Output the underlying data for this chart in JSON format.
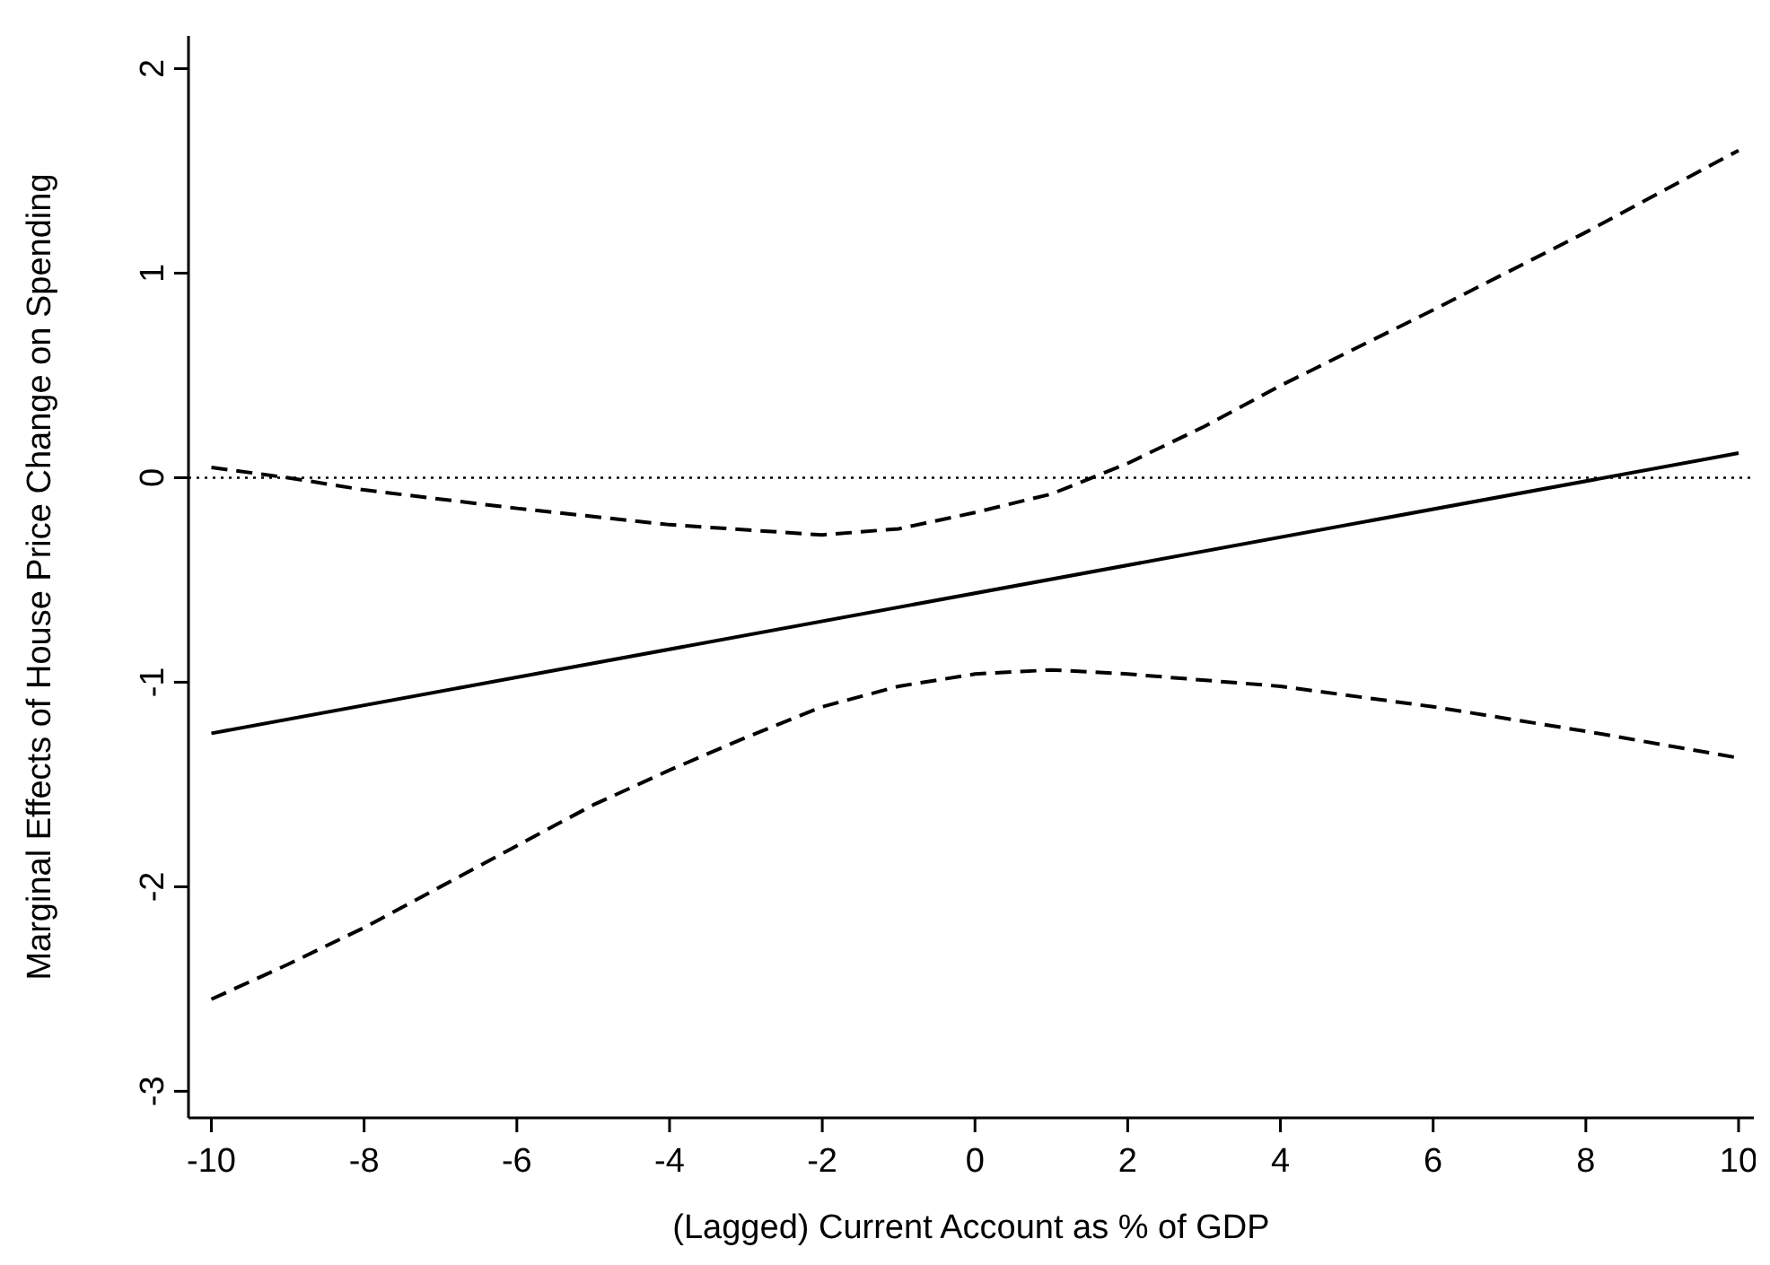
{
  "chart_data": {
    "type": "line",
    "xlabel": "(Lagged) Current Account as % of GDP",
    "ylabel": "Marginal Effects of House Price Change on Spending",
    "xlim": [
      -10.3,
      10.2
    ],
    "ylim": [
      -3.13,
      2.16
    ],
    "xticks": [
      -10,
      -8,
      -6,
      -4,
      -2,
      0,
      2,
      4,
      6,
      8,
      10
    ],
    "yticks": [
      -3,
      -2,
      -1,
      0,
      1,
      2
    ],
    "series": [
      {
        "color": "#000000",
        "line_style": "solid",
        "x": [
          -10,
          10
        ],
        "values": [
          -1.25,
          0.12
        ]
      },
      {
        "color": "#000000",
        "line_style": "dashed",
        "x": [
          -10,
          -9,
          -8,
          -6,
          -4,
          -2,
          -1,
          0,
          1,
          2,
          3,
          4,
          6,
          8,
          10
        ],
        "values": [
          0.05,
          0.0,
          -0.06,
          -0.15,
          -0.23,
          -0.28,
          -0.25,
          -0.17,
          -0.08,
          0.07,
          0.25,
          0.45,
          0.82,
          1.2,
          1.6
        ]
      },
      {
        "color": "#000000",
        "line_style": "dashed",
        "x": [
          -10,
          -9,
          -8,
          -7,
          -6,
          -5,
          -4,
          -3,
          -2,
          -1,
          0,
          1,
          2,
          4,
          6,
          8,
          10
        ],
        "values": [
          -2.55,
          -2.38,
          -2.2,
          -2.0,
          -1.8,
          -1.6,
          -1.43,
          -1.27,
          -1.12,
          -1.02,
          -0.96,
          -0.94,
          -0.96,
          -1.02,
          -1.12,
          -1.24,
          -1.37
        ]
      }
    ],
    "ref_lines": [
      {
        "axis": "y",
        "value": 0,
        "line_style": "dotted",
        "color": "#000000"
      }
    ]
  }
}
